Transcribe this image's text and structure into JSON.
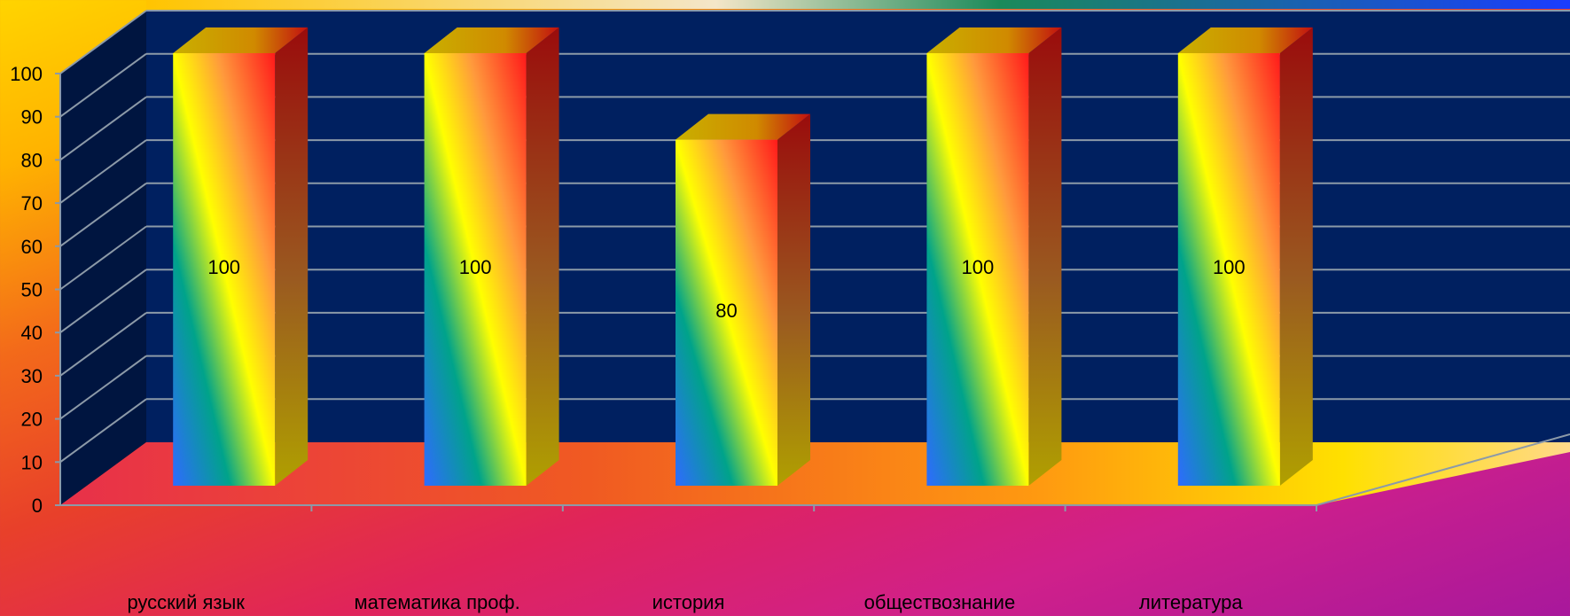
{
  "chart_data": {
    "type": "bar",
    "categories": [
      "русский язык",
      "математика проф.",
      "история",
      "обществознание",
      "литература"
    ],
    "values": [
      100,
      100,
      80,
      100,
      100
    ],
    "data_labels": [
      "100",
      "100",
      "80",
      "100",
      "100"
    ],
    "title": "",
    "xlabel": "",
    "ylabel": "",
    "ylim": [
      0,
      100
    ],
    "yticks": [
      0,
      10,
      20,
      30,
      40,
      50,
      60,
      70,
      80,
      90,
      100
    ],
    "ytick_labels": [
      "0",
      "10",
      "20",
      "30",
      "40",
      "50",
      "60",
      "70",
      "80",
      "90",
      "100"
    ],
    "grid": true,
    "legend": "none",
    "style": "3d-column",
    "colors": {
      "back_wall": "#002060",
      "side_wall": "#001540",
      "gridline": "#8c9aa8",
      "bar_front_stops": [
        "#2f6bff",
        "#00a38a",
        "#ffff00",
        "#ff9a3c",
        "#ff1a1a"
      ],
      "bar_top": "#c99a00",
      "bar_side": "#a81010"
    }
  }
}
